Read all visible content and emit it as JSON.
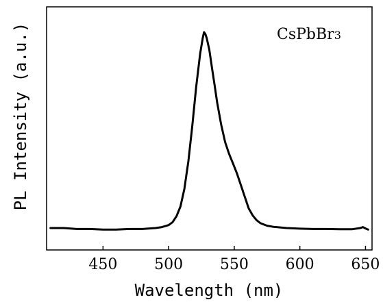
{
  "chart_data": {
    "type": "line",
    "xlabel": "Wavelength (nm)",
    "ylabel": "PL Intensity (a.u.)",
    "annotation": {
      "main": "CsPbBr",
      "subscript": "3"
    },
    "xlim": [
      407,
      655
    ],
    "ylim": [
      0,
      1.1
    ],
    "x_ticks": [
      450,
      500,
      550,
      600,
      650
    ],
    "x_tick_labels": [
      "450",
      "500",
      "550",
      "600",
      "650"
    ],
    "y_ticks_labeled": false,
    "grid": false,
    "series": [
      {
        "x": [
          410,
          420,
          430,
          440,
          450,
          460,
          470,
          480,
          490,
          495,
          500,
          503,
          506,
          509,
          512,
          515,
          518,
          521,
          524,
          526,
          527,
          528,
          529,
          531,
          533,
          535,
          537,
          540,
          543,
          546,
          549,
          552,
          555,
          558,
          561,
          564,
          567,
          570,
          575,
          580,
          585,
          590,
          600,
          610,
          620,
          630,
          640,
          646,
          648,
          650,
          652
        ],
        "y": [
          0.0,
          0.0,
          -0.005,
          -0.005,
          -0.008,
          -0.008,
          -0.005,
          -0.005,
          0.0,
          0.005,
          0.015,
          0.03,
          0.06,
          0.11,
          0.2,
          0.34,
          0.52,
          0.72,
          0.89,
          0.97,
          1.0,
          0.99,
          0.97,
          0.91,
          0.82,
          0.73,
          0.64,
          0.53,
          0.44,
          0.38,
          0.33,
          0.28,
          0.22,
          0.16,
          0.1,
          0.065,
          0.04,
          0.025,
          0.012,
          0.006,
          0.003,
          0.0,
          -0.003,
          -0.005,
          -0.005,
          -0.006,
          -0.006,
          0.0,
          0.005,
          -0.002,
          -0.008
        ],
        "color": "#000000"
      }
    ]
  }
}
